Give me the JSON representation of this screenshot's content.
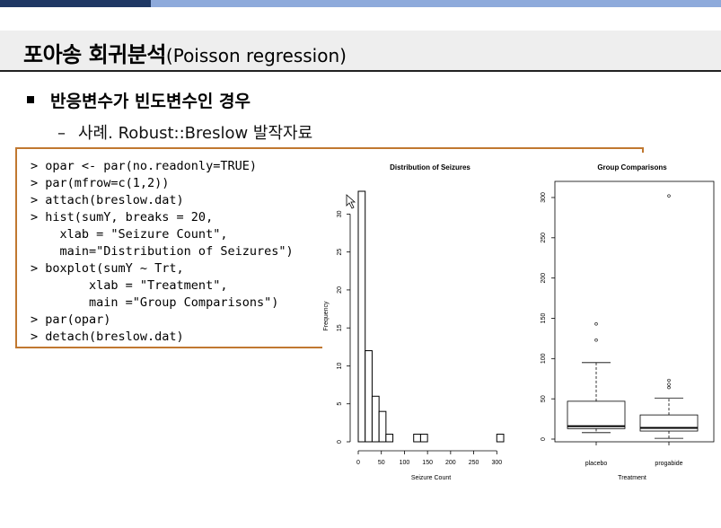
{
  "slide": {
    "title_main": "포아송 회귀분석",
    "title_sub": "(Poisson regression)",
    "bullet": "반응변수가 빈도변수인 경우",
    "sub_bullet_dash": "–",
    "sub_bullet": "사례. Robust::Breslow 발작자료"
  },
  "code_lines": [
    "> opar <- par(no.readonly=TRUE)",
    "> par(mfrow=c(1,2))",
    "> attach(breslow.dat)",
    "> hist(sumY, breaks = 20,",
    "    xlab = \"Seizure Count\",",
    "    main=\"Distribution of Seizures\")",
    "> boxplot(sumY ~ Trt,",
    "        xlab = \"Treatment\",",
    "        main =\"Group Comparisons\")",
    "> par(opar)",
    "> detach(breslow.dat)"
  ],
  "chart_data": [
    {
      "type": "bar",
      "title": "Distribution of Seizures",
      "xlabel": "Seizure Count",
      "ylabel": "Frequency",
      "bin_width": 15,
      "bins_start": [
        0,
        15,
        30,
        45,
        60,
        75,
        90,
        105,
        120,
        135,
        150,
        165,
        180,
        195,
        210,
        225,
        240,
        255,
        270,
        285,
        300
      ],
      "values": [
        33,
        12,
        6,
        4,
        1,
        0,
        0,
        0,
        1,
        1,
        0,
        0,
        0,
        0,
        0,
        0,
        0,
        0,
        0,
        0,
        1
      ],
      "xticks": [
        "0",
        "50",
        "100",
        "150",
        "200",
        "250",
        "300"
      ],
      "yticks": [
        "0",
        "5",
        "10",
        "15",
        "20",
        "25",
        "30"
      ],
      "xlim": [
        0,
        315
      ],
      "ylim": [
        0,
        33
      ]
    },
    {
      "type": "box",
      "title": "Group Comparisons",
      "xlabel": "Treatment",
      "categories": [
        "placebo",
        "progabide"
      ],
      "boxes": [
        {
          "name": "placebo",
          "whisker_low": 8,
          "q1": 13,
          "median": 16,
          "q3": 47,
          "whisker_high": 95,
          "outliers": [
            123,
            143
          ]
        },
        {
          "name": "progabide",
          "whisker_low": 1,
          "q1": 10,
          "median": 14,
          "q3": 30,
          "whisker_high": 51,
          "outliers": [
            64,
            68,
            73,
            302
          ]
        }
      ],
      "yticks": [
        "0",
        "50",
        "100",
        "150",
        "200",
        "250",
        "300"
      ],
      "ylim": [
        0,
        310
      ]
    }
  ]
}
